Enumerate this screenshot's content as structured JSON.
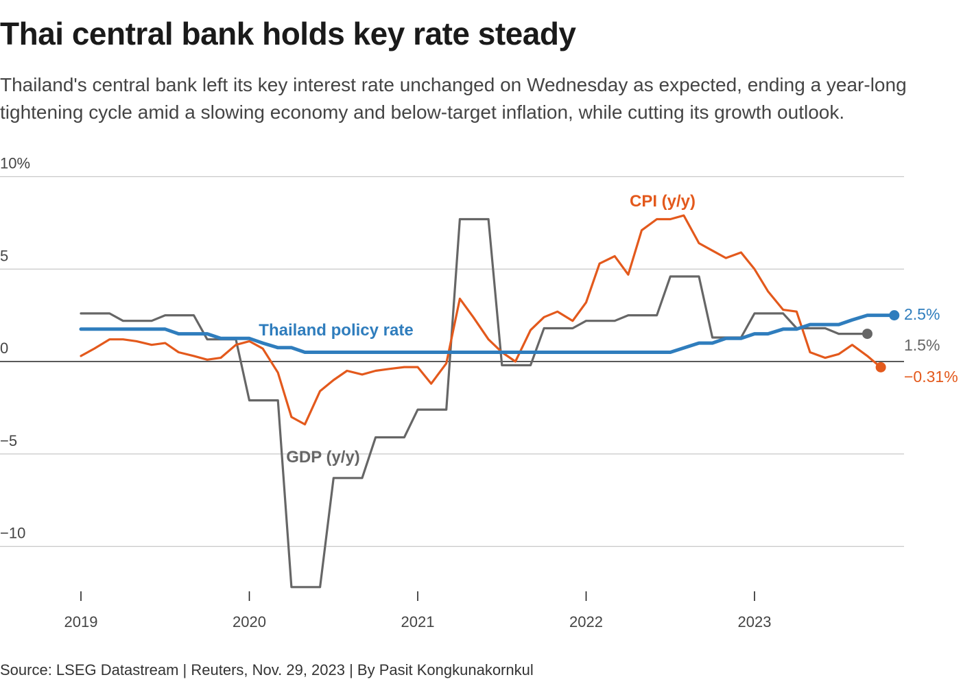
{
  "title": "Thai central bank holds key rate steady",
  "subtitle": "Thailand's central bank left its key interest rate unchanged on Wednesday as expected, ending a year-long tightening cycle amid a slowing economy and below-target inflation, while cutting its growth outlook.",
  "source": "Source: LSEG Datastream | Reuters, Nov. 29, 2023 | By Pasit Kongkunakornkul",
  "colors": {
    "policy": "#2f7dbd",
    "cpi": "#e3591c",
    "gdp": "#666666",
    "grid": "#c8c8c8",
    "zero": "#222222"
  },
  "chart_data": {
    "type": "line",
    "title": "Thai central bank holds key rate steady",
    "xlabel": "",
    "ylabel": "",
    "ylim": [
      -13,
      10.5
    ],
    "xlim": [
      2018.95,
      2023.9
    ],
    "y_ticks": [
      {
        "value": 10,
        "label": "10%"
      },
      {
        "value": 5,
        "label": "5"
      },
      {
        "value": 0,
        "label": "0"
      },
      {
        "value": -5,
        "label": "−5"
      },
      {
        "value": -10,
        "label": "−10"
      }
    ],
    "x_ticks": [
      {
        "value": 2019,
        "label": "2019"
      },
      {
        "value": 2020,
        "label": "2020"
      },
      {
        "value": 2021,
        "label": "2021"
      },
      {
        "value": 2022,
        "label": "2022"
      },
      {
        "value": 2023,
        "label": "2023"
      }
    ],
    "series": [
      {
        "name": "GDP (y/y)",
        "key": "gdp",
        "label": "GDP (y/y)",
        "end_label": "1.5%",
        "points": [
          [
            2019.0,
            2.6
          ],
          [
            2019.17,
            2.6
          ],
          [
            2019.25,
            2.2
          ],
          [
            2019.42,
            2.2
          ],
          [
            2019.5,
            2.5
          ],
          [
            2019.67,
            2.5
          ],
          [
            2019.75,
            1.2
          ],
          [
            2019.92,
            1.2
          ],
          [
            2020.0,
            -2.1
          ],
          [
            2020.17,
            -2.1
          ],
          [
            2020.25,
            -12.2
          ],
          [
            2020.42,
            -12.2
          ],
          [
            2020.5,
            -6.3
          ],
          [
            2020.67,
            -6.3
          ],
          [
            2020.75,
            -4.1
          ],
          [
            2020.92,
            -4.1
          ],
          [
            2021.0,
            -2.6
          ],
          [
            2021.17,
            -2.6
          ],
          [
            2021.25,
            7.7
          ],
          [
            2021.42,
            7.7
          ],
          [
            2021.5,
            -0.2
          ],
          [
            2021.67,
            -0.2
          ],
          [
            2021.75,
            1.8
          ],
          [
            2021.92,
            1.8
          ],
          [
            2022.0,
            2.2
          ],
          [
            2022.17,
            2.2
          ],
          [
            2022.25,
            2.5
          ],
          [
            2022.42,
            2.5
          ],
          [
            2022.5,
            4.6
          ],
          [
            2022.67,
            4.6
          ],
          [
            2022.75,
            1.3
          ],
          [
            2022.92,
            1.3
          ],
          [
            2023.0,
            2.6
          ],
          [
            2023.17,
            2.6
          ],
          [
            2023.25,
            1.8
          ],
          [
            2023.42,
            1.8
          ],
          [
            2023.5,
            1.5
          ],
          [
            2023.67,
            1.5
          ]
        ]
      },
      {
        "name": "CPI (y/y)",
        "key": "cpi",
        "label": "CPI (y/y)",
        "end_label": "−0.31%",
        "points": [
          [
            2019.0,
            0.3
          ],
          [
            2019.08,
            0.7
          ],
          [
            2019.17,
            1.2
          ],
          [
            2019.25,
            1.2
          ],
          [
            2019.33,
            1.1
          ],
          [
            2019.42,
            0.9
          ],
          [
            2019.5,
            1.0
          ],
          [
            2019.58,
            0.5
          ],
          [
            2019.67,
            0.3
          ],
          [
            2019.75,
            0.1
          ],
          [
            2019.83,
            0.2
          ],
          [
            2019.92,
            0.9
          ],
          [
            2020.0,
            1.1
          ],
          [
            2020.08,
            0.7
          ],
          [
            2020.17,
            -0.6
          ],
          [
            2020.25,
            -3.0
          ],
          [
            2020.33,
            -3.4
          ],
          [
            2020.42,
            -1.6
          ],
          [
            2020.5,
            -1.0
          ],
          [
            2020.58,
            -0.5
          ],
          [
            2020.67,
            -0.7
          ],
          [
            2020.75,
            -0.5
          ],
          [
            2020.83,
            -0.4
          ],
          [
            2020.92,
            -0.3
          ],
          [
            2021.0,
            -0.3
          ],
          [
            2021.08,
            -1.2
          ],
          [
            2021.17,
            -0.1
          ],
          [
            2021.25,
            3.4
          ],
          [
            2021.33,
            2.4
          ],
          [
            2021.42,
            1.2
          ],
          [
            2021.5,
            0.5
          ],
          [
            2021.58,
            0.0
          ],
          [
            2021.67,
            1.7
          ],
          [
            2021.75,
            2.4
          ],
          [
            2021.83,
            2.7
          ],
          [
            2021.92,
            2.2
          ],
          [
            2022.0,
            3.2
          ],
          [
            2022.08,
            5.3
          ],
          [
            2022.17,
            5.7
          ],
          [
            2022.25,
            4.7
          ],
          [
            2022.33,
            7.1
          ],
          [
            2022.42,
            7.7
          ],
          [
            2022.5,
            7.7
          ],
          [
            2022.58,
            7.9
          ],
          [
            2022.67,
            6.4
          ],
          [
            2022.75,
            6.0
          ],
          [
            2022.83,
            5.6
          ],
          [
            2022.92,
            5.9
          ],
          [
            2023.0,
            5.0
          ],
          [
            2023.08,
            3.8
          ],
          [
            2023.17,
            2.8
          ],
          [
            2023.25,
            2.7
          ],
          [
            2023.33,
            0.5
          ],
          [
            2023.42,
            0.2
          ],
          [
            2023.5,
            0.4
          ],
          [
            2023.58,
            0.9
          ],
          [
            2023.67,
            0.3
          ],
          [
            2023.75,
            -0.31
          ]
        ]
      },
      {
        "name": "Thailand policy rate",
        "key": "policy",
        "label": "Thailand policy rate",
        "end_label": "2.5%",
        "points": [
          [
            2019.0,
            1.75
          ],
          [
            2019.5,
            1.75
          ],
          [
            2019.58,
            1.5
          ],
          [
            2019.75,
            1.5
          ],
          [
            2019.83,
            1.25
          ],
          [
            2020.0,
            1.25
          ],
          [
            2020.08,
            1.0
          ],
          [
            2020.17,
            0.75
          ],
          [
            2020.25,
            0.75
          ],
          [
            2020.33,
            0.5
          ],
          [
            2022.5,
            0.5
          ],
          [
            2022.67,
            1.0
          ],
          [
            2022.75,
            1.0
          ],
          [
            2022.83,
            1.25
          ],
          [
            2022.92,
            1.25
          ],
          [
            2023.0,
            1.5
          ],
          [
            2023.08,
            1.5
          ],
          [
            2023.17,
            1.75
          ],
          [
            2023.25,
            1.75
          ],
          [
            2023.33,
            2.0
          ],
          [
            2023.5,
            2.0
          ],
          [
            2023.58,
            2.25
          ],
          [
            2023.67,
            2.5
          ],
          [
            2023.83,
            2.5
          ]
        ]
      }
    ]
  }
}
